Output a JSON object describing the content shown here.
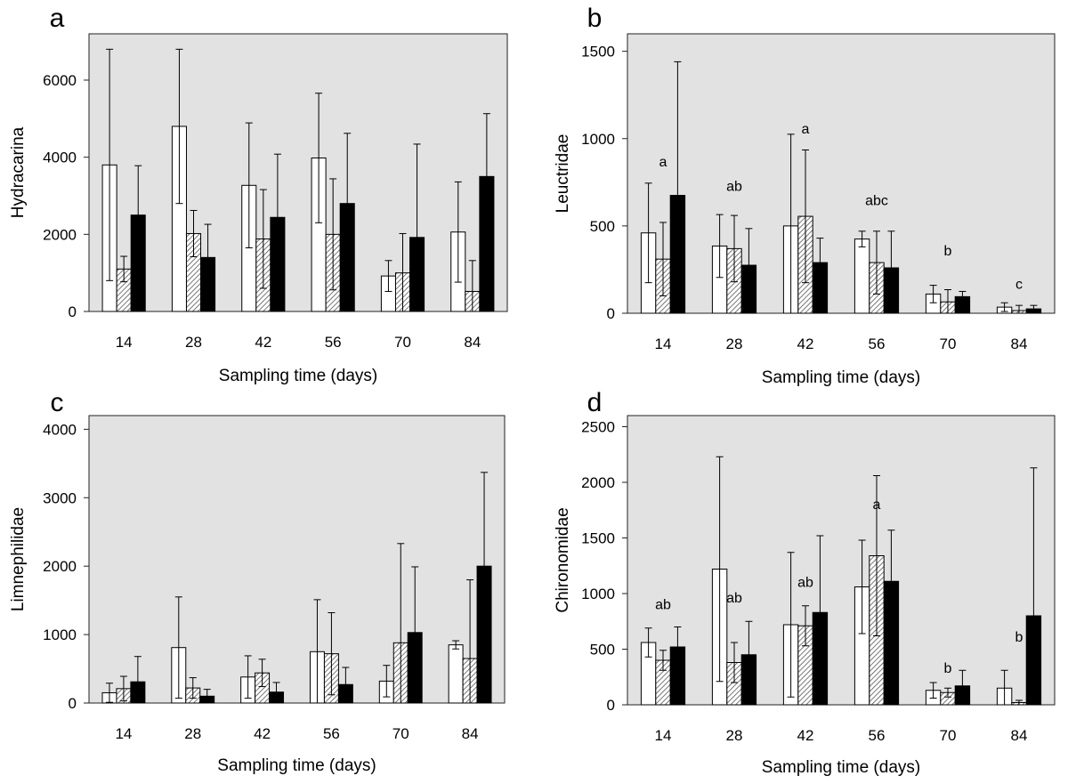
{
  "colors": {
    "plot_bg": "#e2e2e2",
    "control": "#ffffff",
    "medium": "#8a8a8a",
    "high": "#000000"
  },
  "chart_data": [
    {
      "panel": "a",
      "type": "bar",
      "ylabel": "Hydracarina",
      "xlabel": "Sampling time (days)",
      "ylim": [
        0,
        7200
      ],
      "yticks": [
        0,
        2000,
        4000,
        6000
      ],
      "categories": [
        "14",
        "28",
        "42",
        "56",
        "70",
        "84"
      ],
      "series": [
        {
          "name": "open",
          "values": [
            3800,
            4800,
            3270,
            3980,
            920,
            2060
          ],
          "errors": [
            3000,
            2000,
            1620,
            1680,
            400,
            1300
          ]
        },
        {
          "name": "hatched",
          "values": [
            1100,
            2020,
            1880,
            2000,
            1000,
            520
          ],
          "errors": [
            330,
            600,
            1280,
            1440,
            1020,
            800
          ]
        },
        {
          "name": "filled",
          "values": [
            2500,
            1400,
            2440,
            2800,
            1920,
            3500
          ],
          "errors": [
            1280,
            860,
            1640,
            1820,
            2420,
            1630
          ]
        }
      ],
      "annotations": []
    },
    {
      "panel": "b",
      "type": "bar",
      "ylabel": "Leuctridae",
      "xlabel": "Sampling time (days)",
      "ylim": [
        0,
        1600
      ],
      "yticks": [
        0,
        500,
        1000,
        1500
      ],
      "categories": [
        "14",
        "28",
        "42",
        "56",
        "70",
        "84"
      ],
      "series": [
        {
          "name": "open",
          "values": [
            460,
            385,
            500,
            425,
            110,
            35
          ],
          "errors": [
            285,
            180,
            525,
            45,
            50,
            25
          ]
        },
        {
          "name": "hatched",
          "values": [
            310,
            370,
            555,
            290,
            65,
            15
          ],
          "errors": [
            210,
            190,
            380,
            180,
            70,
            30
          ]
        },
        {
          "name": "filled",
          "values": [
            675,
            275,
            290,
            260,
            95,
            25
          ],
          "errors": [
            765,
            210,
            140,
            210,
            30,
            20
          ]
        }
      ],
      "annotations": [
        {
          "text": "a",
          "index": 0,
          "value": 840
        },
        {
          "text": "ab",
          "index": 1,
          "value": 700
        },
        {
          "text": "a",
          "index": 2,
          "value": 1030
        },
        {
          "text": "abc",
          "index": 3,
          "value": 620
        },
        {
          "text": "b",
          "index": 4,
          "value": 330
        },
        {
          "text": "c",
          "index": 5,
          "value": 140
        }
      ]
    },
    {
      "panel": "c",
      "type": "bar",
      "ylabel": "Limnephilidae",
      "xlabel": "Sampling time (days)",
      "ylim": [
        0,
        4200
      ],
      "yticks": [
        0,
        1000,
        2000,
        3000,
        4000
      ],
      "categories": [
        "14",
        "28",
        "42",
        "56",
        "70",
        "84"
      ],
      "series": [
        {
          "name": "open",
          "values": [
            150,
            810,
            380,
            750,
            320,
            850
          ],
          "errors": [
            140,
            740,
            310,
            760,
            230,
            60
          ]
        },
        {
          "name": "hatched",
          "values": [
            210,
            220,
            440,
            720,
            880,
            650
          ],
          "errors": [
            180,
            150,
            200,
            600,
            1450,
            1150
          ]
        },
        {
          "name": "filled",
          "values": [
            310,
            100,
            160,
            270,
            1030,
            2000
          ],
          "errors": [
            370,
            100,
            140,
            250,
            960,
            1370
          ]
        }
      ],
      "annotations": []
    },
    {
      "panel": "d",
      "type": "bar",
      "ylabel": "Chironomidae",
      "xlabel": "Sampling time (days)",
      "ylim": [
        0,
        2600
      ],
      "yticks": [
        0,
        500,
        1000,
        1500,
        2000,
        2500
      ],
      "categories": [
        "14",
        "28",
        "42",
        "56",
        "70",
        "84"
      ],
      "series": [
        {
          "name": "open",
          "values": [
            560,
            1220,
            720,
            1060,
            130,
            150
          ],
          "errors": [
            130,
            1010,
            650,
            420,
            70,
            160
          ]
        },
        {
          "name": "hatched",
          "values": [
            400,
            380,
            710,
            1340,
            110,
            20
          ],
          "errors": [
            90,
            180,
            180,
            720,
            40,
            20
          ]
        },
        {
          "name": "filled",
          "values": [
            520,
            450,
            830,
            1110,
            170,
            800
          ],
          "errors": [
            180,
            300,
            690,
            460,
            140,
            1330
          ]
        }
      ],
      "annotations": [
        {
          "text": "ab",
          "index": 0,
          "value": 860
        },
        {
          "text": "ab",
          "index": 1,
          "value": 920
        },
        {
          "text": "ab",
          "index": 2,
          "value": 1060
        },
        {
          "text": "a",
          "index": 3,
          "value": 1760
        },
        {
          "text": "b",
          "index": 4,
          "value": 290
        },
        {
          "text": "b",
          "index": 5,
          "value": 570
        }
      ]
    }
  ]
}
